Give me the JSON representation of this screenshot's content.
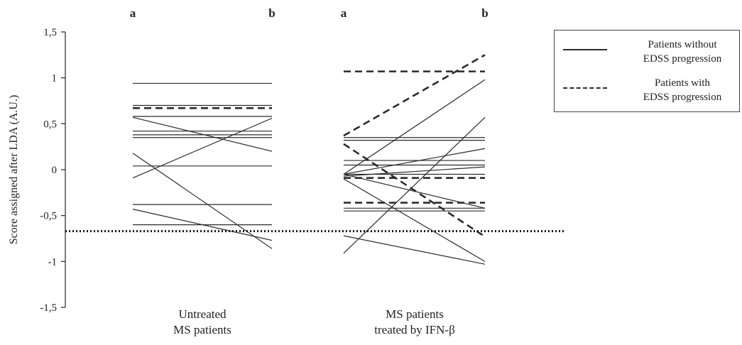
{
  "chart_data": {
    "type": "line",
    "title": "",
    "ylabel": "Score assigned after LDA (A.U.)",
    "xlabel": "",
    "ylim": [
      -1.5,
      1.5
    ],
    "yticks": [
      {
        "value": 1.5,
        "label": "1,5"
      },
      {
        "value": 1,
        "label": "1"
      },
      {
        "value": 0.5,
        "label": "0,5"
      },
      {
        "value": 0,
        "label": "0"
      },
      {
        "value": -0.5,
        "label": "-0,5"
      },
      {
        "value": -1,
        "label": "-1"
      },
      {
        "value": -1.5,
        "label": "-1,5"
      }
    ],
    "threshold": -0.67,
    "grid": false,
    "legend_position": "top-right",
    "groups": [
      {
        "label": "Untreated\nMS patients",
        "time_labels": [
          "a",
          "b"
        ],
        "patients": [
          {
            "a": 0.94,
            "b": 0.94,
            "progression": false
          },
          {
            "a": 0.7,
            "b": 0.7,
            "progression": false
          },
          {
            "a": 0.67,
            "b": 0.67,
            "progression": true
          },
          {
            "a": 0.58,
            "b": 0.58,
            "progression": false
          },
          {
            "a": 0.42,
            "b": 0.42,
            "progression": false
          },
          {
            "a": 0.38,
            "b": 0.38,
            "progression": false
          },
          {
            "a": 0.35,
            "b": 0.35,
            "progression": false
          },
          {
            "a": 0.57,
            "b": 0.2,
            "progression": false
          },
          {
            "a": -0.09,
            "b": 0.56,
            "progression": false
          },
          {
            "a": 0.04,
            "b": 0.04,
            "progression": false
          },
          {
            "a": 0.18,
            "b": -0.86,
            "progression": false
          },
          {
            "a": -0.38,
            "b": -0.38,
            "progression": false
          },
          {
            "a": -0.43,
            "b": -0.77,
            "progression": false
          },
          {
            "a": -0.6,
            "b": -0.6,
            "progression": false
          }
        ]
      },
      {
        "label": "MS patients\ntreated by IFN-β",
        "time_labels": [
          "a",
          "b"
        ],
        "patients": [
          {
            "a": 1.07,
            "b": 1.07,
            "progression": true
          },
          {
            "a": 0.37,
            "b": 1.25,
            "progression": true
          },
          {
            "a": -0.05,
            "b": 0.98,
            "progression": false
          },
          {
            "a": -0.91,
            "b": 0.57,
            "progression": false
          },
          {
            "a": 0.35,
            "b": 0.35,
            "progression": false
          },
          {
            "a": 0.32,
            "b": 0.32,
            "progression": false
          },
          {
            "a": 0.28,
            "b": -0.73,
            "progression": true
          },
          {
            "a": 0.1,
            "b": 0.1,
            "progression": false
          },
          {
            "a": 0.05,
            "b": 0.05,
            "progression": false
          },
          {
            "a": -0.05,
            "b": 0.23,
            "progression": false
          },
          {
            "a": -0.05,
            "b": -0.05,
            "progression": false
          },
          {
            "a": -0.09,
            "b": -0.09,
            "progression": true
          },
          {
            "a": -0.07,
            "b": 0.03,
            "progression": false
          },
          {
            "a": -0.1,
            "b": -1.0,
            "progression": false
          },
          {
            "a": -0.05,
            "b": -0.42,
            "progression": false
          },
          {
            "a": -0.36,
            "b": -0.36,
            "progression": true
          },
          {
            "a": -0.45,
            "b": -0.45,
            "progression": false
          },
          {
            "a": -0.42,
            "b": -0.42,
            "progression": false
          },
          {
            "a": -0.72,
            "b": -1.03,
            "progression": false
          }
        ]
      }
    ],
    "legend": [
      {
        "label": "Patients without\nEDSS progression",
        "style": "solid"
      },
      {
        "label": "Patients with\nEDSS progression",
        "style": "dashed"
      }
    ],
    "colors": {
      "line": "#2b2b2b",
      "threshold": "#111111",
      "axis": "#333333"
    }
  }
}
